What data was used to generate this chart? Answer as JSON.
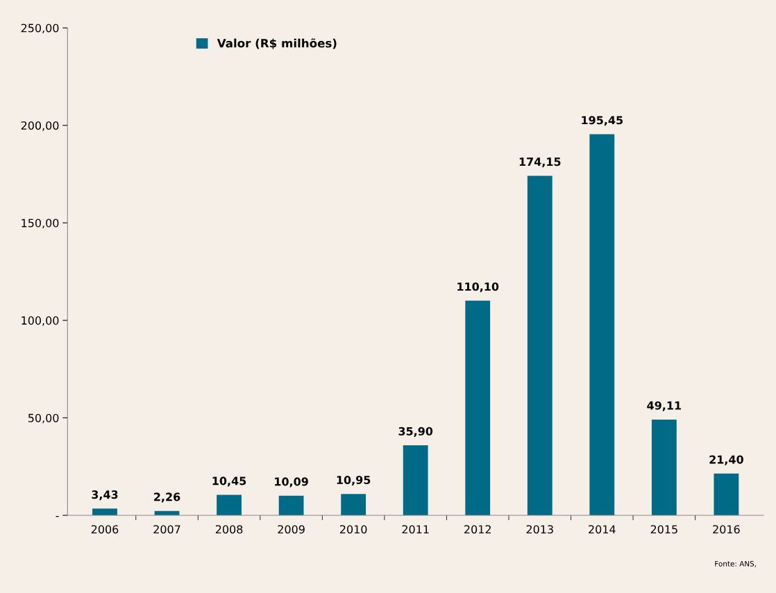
{
  "chart_data": {
    "type": "bar",
    "categories": [
      "2006",
      "2007",
      "2008",
      "2009",
      "2010",
      "2011",
      "2012",
      "2013",
      "2014",
      "2015",
      "2016"
    ],
    "series": [
      {
        "name": "Valor (R$ milhões)",
        "color": "#006b87",
        "values": [
          3.43,
          2.26,
          10.45,
          10.09,
          10.95,
          35.9,
          110.1,
          174.15,
          195.45,
          49.11,
          21.4
        ],
        "value_labels": [
          "3,43",
          "2,26",
          "10,45",
          "10,09",
          "10,95",
          "35,90",
          "110,10",
          "174,15",
          "195,45",
          "49,11",
          "21,40"
        ]
      }
    ],
    "ylim": [
      0,
      250
    ],
    "yticks": [
      {
        "value": 0,
        "label": "-"
      },
      {
        "value": 50,
        "label": "50,00"
      },
      {
        "value": 100,
        "label": "100,00"
      },
      {
        "value": 150,
        "label": "150,00"
      },
      {
        "value": 200,
        "label": "200,00"
      },
      {
        "value": 250,
        "label": "250,00"
      }
    ],
    "grid": false,
    "legend": "top left",
    "annotations": [
      "Fonte: ANS,"
    ]
  }
}
